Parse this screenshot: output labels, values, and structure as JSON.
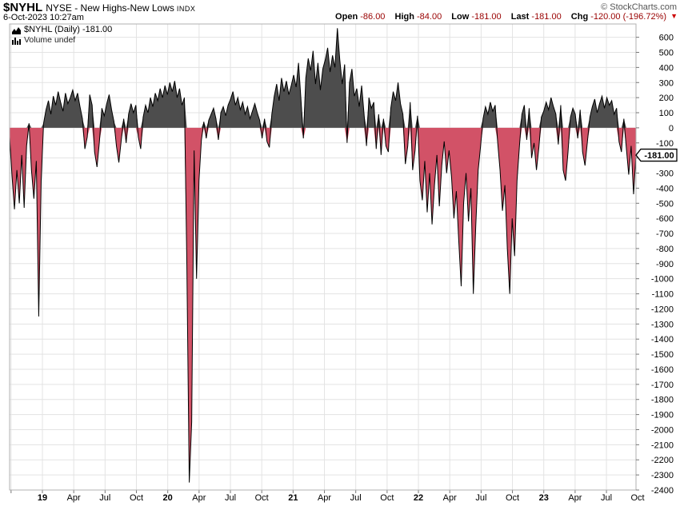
{
  "header": {
    "symbol": "$NYHL",
    "name": "NYSE - New Highs-New Lows",
    "tag": "INDX",
    "copyright": "© StockCharts.com",
    "datetime": "6-Oct-2023 10:27am"
  },
  "quote": {
    "open": {
      "label": "Open",
      "value": "-86.00"
    },
    "high": {
      "label": "High",
      "value": "-84.00"
    },
    "low": {
      "label": "Low",
      "value": "-181.00"
    },
    "last": {
      "label": "Last",
      "value": "-181.00"
    },
    "chg": {
      "label": "Chg",
      "value": "-120.00 (-196.72%)"
    },
    "direction_icon": "▼"
  },
  "legend": {
    "series": "$NYHL (Daily) -181.00",
    "volume": "Volume undef"
  },
  "colors": {
    "positive_fill": "#4d4d4d",
    "negative_fill": "#d25267",
    "outline": "#000000",
    "grid": "#e3e3e3",
    "border": "#b0b0b0",
    "tick": "#777777",
    "value_red": "#990000"
  },
  "chart_data": {
    "type": "area",
    "title": "$NYHL Daily - NYSE New Highs minus New Lows",
    "series_name": "$NYHL (Daily)",
    "x_range": "Oct-2018 to 6-Oct-2023",
    "x_quarter_labels": [
      "19",
      "Apr",
      "Jul",
      "Oct",
      "20",
      "Apr",
      "Jul",
      "Oct",
      "21",
      "Apr",
      "Jul",
      "Oct",
      "22",
      "Apr",
      "Jul",
      "Oct",
      "23",
      "Apr",
      "Jul",
      "Oct"
    ],
    "y_ticks": [
      600,
      500,
      400,
      300,
      200,
      100,
      0,
      -100,
      -200,
      -300,
      -400,
      -500,
      -600,
      -700,
      -800,
      -900,
      -1000,
      -1100,
      -1200,
      -1300,
      -1400,
      -1500,
      -1600,
      -1700,
      -1800,
      -1900,
      -2000,
      -2100,
      -2200,
      -2300,
      -2400
    ],
    "ylim": [
      688,
      -2400
    ],
    "grid": true,
    "last_value": -181,
    "last_label": "-181.00",
    "values": [
      -60,
      -320,
      -540,
      -280,
      -500,
      -180,
      -530,
      -120,
      30,
      -280,
      -470,
      -220,
      -1250,
      -350,
      30,
      120,
      180,
      90,
      210,
      150,
      240,
      170,
      110,
      230,
      160,
      200,
      250,
      180,
      230,
      140,
      60,
      -140,
      -60,
      220,
      150,
      -160,
      -260,
      -90,
      130,
      80,
      160,
      220,
      120,
      40,
      -120,
      -230,
      -80,
      60,
      -100,
      90,
      160,
      100,
      150,
      -60,
      -140,
      70,
      150,
      100,
      200,
      140,
      230,
      180,
      260,
      200,
      280,
      220,
      300,
      240,
      310,
      200,
      260,
      150,
      200,
      -900,
      -2350,
      -1950,
      -150,
      -1000,
      -350,
      -80,
      40,
      -70,
      50,
      90,
      130,
      60,
      -80,
      100,
      140,
      80,
      150,
      190,
      240,
      150,
      200,
      120,
      170,
      90,
      140,
      60,
      110,
      160,
      100,
      50,
      -70,
      60,
      -90,
      -130,
      90,
      210,
      290,
      180,
      330,
      240,
      310,
      220,
      280,
      350,
      270,
      430,
      190,
      -70,
      330,
      460,
      380,
      510,
      290,
      430,
      250,
      390,
      450,
      530,
      370,
      480,
      400,
      660,
      450,
      290,
      420,
      -100,
      300,
      390,
      210,
      260,
      140,
      280,
      90,
      -120,
      200,
      130,
      170,
      -140,
      90,
      -180,
      60,
      -120,
      -160,
      130,
      240,
      180,
      300,
      160,
      90,
      -240,
      -120,
      170,
      -280,
      -150,
      80,
      -350,
      -480,
      -220,
      -560,
      -300,
      -640,
      -380,
      -180,
      -520,
      -250,
      -90,
      -300,
      -150,
      -320,
      -600,
      -420,
      -750,
      -1050,
      -500,
      -300,
      -620,
      -400,
      -1100,
      -650,
      -280,
      -120,
      60,
      140,
      90,
      170,
      110,
      150,
      -90,
      -280,
      -550,
      -380,
      -800,
      -1100,
      -600,
      -850,
      -350,
      -120,
      90,
      150,
      -80,
      130,
      -200,
      -100,
      -280,
      -130,
      70,
      110,
      170,
      120,
      200,
      140,
      90,
      -110,
      150,
      -280,
      -350,
      -160,
      70,
      130,
      90,
      -70,
      120,
      -160,
      -250,
      -90,
      70,
      140,
      190,
      100,
      160,
      210,
      130,
      200,
      150,
      180,
      90,
      130,
      -90,
      -160,
      60,
      -130,
      -310,
      -120,
      -440,
      -181
    ]
  }
}
